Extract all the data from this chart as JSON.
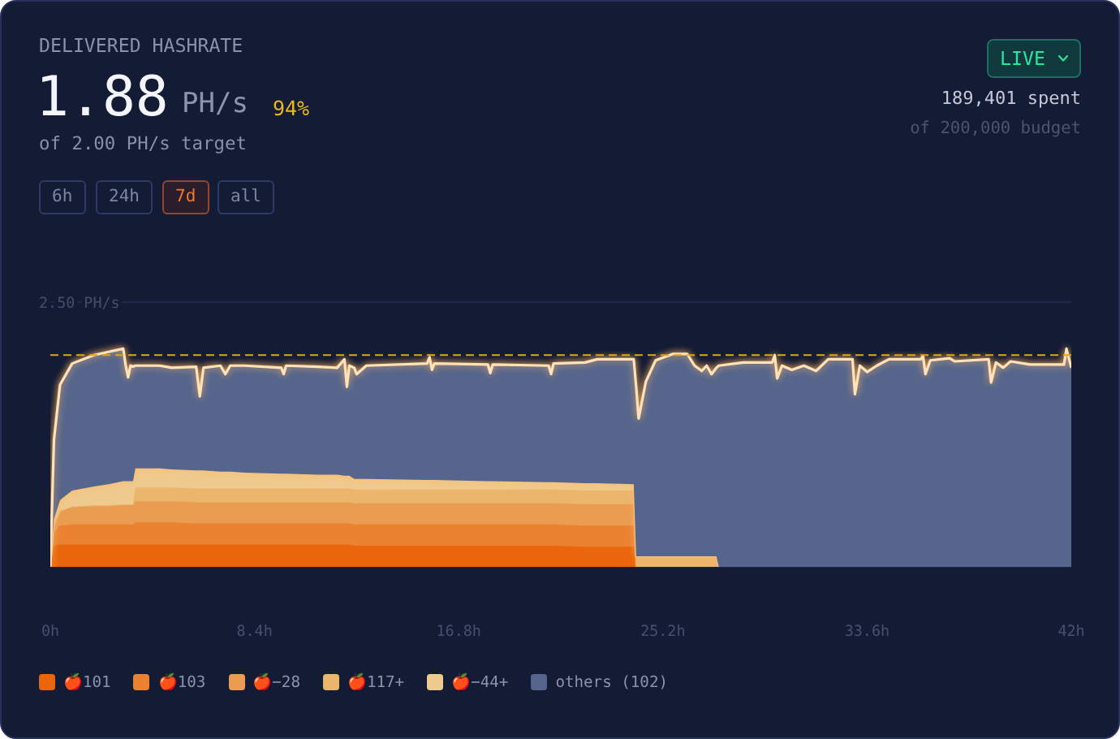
{
  "chart_data": {
    "type": "area",
    "title": "DELIVERED HASHRATE",
    "x": [
      0,
      0.15,
      0.4,
      0.9,
      1.8,
      2.4,
      3.0,
      3.1,
      3.2,
      3.3,
      3.4,
      3.5,
      4.5,
      5.0,
      6.0,
      6.15,
      6.3,
      7.0,
      7.2,
      7.4,
      8.0,
      9.5,
      9.6,
      9.7,
      11,
      11.8,
      12.1,
      12.2,
      12.3,
      12.5,
      12.6,
      13,
      15.5,
      15.6,
      15.7,
      15.8,
      18,
      18.1,
      18.2,
      20.5,
      20.6,
      20.7,
      22,
      22.5,
      24.0,
      24.1,
      24.2,
      24.5,
      24.9,
      25.6,
      26.2,
      26.5,
      26.8,
      27.0,
      27.2,
      27.4,
      27.5,
      28.5,
      29.7,
      29.8,
      29.9,
      30.1,
      30.5,
      31.0,
      31.5,
      32.0,
      33.0,
      33.1,
      33.3,
      33.6,
      34.0,
      34.5,
      35.8,
      35.9,
      36.0,
      36.2,
      37.0,
      37.2,
      38.6,
      38.7,
      38.9,
      39.2,
      39.5,
      40.3,
      41.7,
      41.8,
      42
    ],
    "xlim": [
      0,
      42
    ],
    "xticks": [
      {
        "value": 0,
        "label": "0h"
      },
      {
        "value": 8.4,
        "label": "8.4h"
      },
      {
        "value": 16.8,
        "label": "16.8h"
      },
      {
        "value": 25.2,
        "label": "25.2h"
      },
      {
        "value": 33.6,
        "label": "33.6h"
      },
      {
        "value": 42,
        "label": "42h"
      }
    ],
    "ylim": [
      0,
      2.5
    ],
    "yticks": [
      {
        "value": 2.5,
        "label": "2.50 PH/s"
      }
    ],
    "stacked": true,
    "grid": "y",
    "legend": "bottom left",
    "series": [
      {
        "name": "🍎101",
        "color": "#ea660c",
        "values": [
          0,
          0.2,
          0.21,
          0.21,
          0.21,
          0.21,
          0.21,
          0.21,
          0.21,
          0.21,
          0.21,
          0.21,
          0.21,
          0.21,
          0.21,
          0.21,
          0.21,
          0.21,
          0.21,
          0.21,
          0.21,
          0.21,
          0.21,
          0.21,
          0.21,
          0.21,
          0.21,
          0.21,
          0.21,
          0.2,
          0.2,
          0.2,
          0.2,
          0.2,
          0.2,
          0.2,
          0.2,
          0.2,
          0.2,
          0.2,
          0.2,
          0.2,
          0.19,
          0.19,
          0.19,
          0,
          0,
          0,
          0,
          0,
          0,
          0,
          0,
          0,
          0,
          0,
          0,
          0,
          0,
          0,
          0,
          0,
          0,
          0,
          0,
          0,
          0,
          0,
          0,
          0,
          0,
          0,
          0,
          0,
          0,
          0,
          0,
          0,
          0,
          0,
          0,
          0,
          0,
          0,
          0,
          0,
          0
        ]
      },
      {
        "name": "🍎103",
        "color": "#ea8232",
        "values": [
          0,
          0.13,
          0.18,
          0.19,
          0.19,
          0.19,
          0.19,
          0.19,
          0.19,
          0.19,
          0.19,
          0.21,
          0.21,
          0.21,
          0.2,
          0.2,
          0.2,
          0.2,
          0.2,
          0.2,
          0.2,
          0.2,
          0.2,
          0.2,
          0.2,
          0.2,
          0.2,
          0.2,
          0.2,
          0.2,
          0.2,
          0.2,
          0.2,
          0.2,
          0.2,
          0.2,
          0.2,
          0.2,
          0.2,
          0.2,
          0.2,
          0.2,
          0.2,
          0.2,
          0.2,
          0,
          0,
          0,
          0,
          0,
          0,
          0,
          0,
          0,
          0,
          0,
          0,
          0,
          0,
          0,
          0,
          0,
          0,
          0,
          0,
          0,
          0,
          0,
          0,
          0,
          0,
          0,
          0,
          0,
          0,
          0,
          0,
          0,
          0,
          0,
          0,
          0,
          0,
          0,
          0,
          0,
          0
        ]
      },
      {
        "name": "🍎−28",
        "color": "#ea9c50",
        "values": [
          0,
          0.07,
          0.14,
          0.17,
          0.18,
          0.18,
          0.19,
          0.19,
          0.19,
          0.19,
          0.19,
          0.2,
          0.2,
          0.2,
          0.2,
          0.2,
          0.2,
          0.2,
          0.2,
          0.2,
          0.2,
          0.2,
          0.2,
          0.2,
          0.2,
          0.2,
          0.2,
          0.2,
          0.2,
          0.2,
          0.2,
          0.2,
          0.2,
          0.2,
          0.2,
          0.2,
          0.2,
          0.2,
          0.2,
          0.2,
          0.2,
          0.2,
          0.2,
          0.2,
          0.2,
          0,
          0,
          0,
          0,
          0,
          0,
          0,
          0,
          0,
          0,
          0,
          0,
          0,
          0,
          0,
          0,
          0,
          0,
          0,
          0,
          0,
          0,
          0,
          0,
          0,
          0,
          0,
          0,
          0,
          0,
          0,
          0,
          0,
          0,
          0,
          0,
          0,
          0,
          0,
          0,
          0,
          0
        ]
      },
      {
        "name": "🍎117+",
        "color": "#ecb56c",
        "values": [
          0,
          0,
          0,
          0,
          0,
          0,
          0,
          0,
          0,
          0,
          0,
          0.13,
          0.13,
          0.13,
          0.13,
          0.13,
          0.13,
          0.13,
          0.13,
          0.13,
          0.13,
          0.13,
          0.13,
          0.13,
          0.13,
          0.13,
          0.13,
          0.13,
          0.13,
          0.13,
          0.13,
          0.13,
          0.13,
          0.13,
          0.13,
          0.13,
          0.13,
          0.13,
          0.13,
          0.13,
          0.13,
          0.13,
          0.13,
          0.13,
          0.13,
          0.1,
          0.1,
          0.1,
          0.1,
          0.1,
          0.1,
          0.1,
          0.1,
          0.1,
          0.1,
          0.1,
          0,
          0,
          0,
          0,
          0,
          0,
          0,
          0,
          0,
          0,
          0,
          0,
          0,
          0,
          0,
          0,
          0,
          0,
          0,
          0,
          0,
          0,
          0,
          0,
          0,
          0,
          0,
          0,
          0,
          0,
          0
        ]
      },
      {
        "name": "🍎−44+",
        "color": "#efca8e",
        "values": [
          0,
          0.05,
          0.1,
          0.15,
          0.18,
          0.2,
          0.22,
          0.22,
          0.22,
          0.22,
          0.22,
          0.18,
          0.18,
          0.17,
          0.17,
          0.17,
          0.17,
          0.16,
          0.16,
          0.16,
          0.15,
          0.14,
          0.14,
          0.14,
          0.13,
          0.13,
          0.12,
          0.12,
          0.12,
          0.1,
          0.1,
          0.1,
          0.09,
          0.09,
          0.09,
          0.09,
          0.08,
          0.08,
          0.08,
          0.07,
          0.07,
          0.07,
          0.07,
          0.07,
          0.06,
          0,
          0,
          0,
          0,
          0,
          0,
          0,
          0,
          0,
          0,
          0,
          0,
          0,
          0,
          0,
          0,
          0,
          0,
          0,
          0,
          0,
          0,
          0,
          0,
          0,
          0,
          0,
          0,
          0,
          0,
          0,
          0,
          0,
          0,
          0,
          0,
          0,
          0,
          0,
          0,
          0,
          0
        ]
      },
      {
        "name": "others (102)",
        "color": "#56658c",
        "values": [
          0,
          0.75,
          1.09,
          1.2,
          1.24,
          1.25,
          1.25,
          1.09,
          0.98,
          1.09,
          1.08,
          0.97,
          0.97,
          0.96,
          0.98,
          0.7,
          0.97,
          1.0,
          0.92,
          1.0,
          1.01,
          1.0,
          0.94,
          1.02,
          1.02,
          1.01,
          1.1,
          0.84,
          1.04,
          1.05,
          0.99,
          1.07,
          1.1,
          1.16,
          1.04,
          1.1,
          1.1,
          1.02,
          1.1,
          1.1,
          1.02,
          1.12,
          1.14,
          1.17,
          1.18,
          1.6,
          1.3,
          1.65,
          1.85,
          1.91,
          1.91,
          1.8,
          1.75,
          1.8,
          1.72,
          1.78,
          1.9,
          1.93,
          1.93,
          2.0,
          1.78,
          1.9,
          1.86,
          1.9,
          1.85,
          1.96,
          1.96,
          1.63,
          1.9,
          1.84,
          1.9,
          1.96,
          1.96,
          1.99,
          1.82,
          1.95,
          1.97,
          1.94,
          1.96,
          1.74,
          1.93,
          1.88,
          1.94,
          1.91,
          1.91,
          2.06,
          1.88
        ]
      }
    ],
    "ref_lines": [
      {
        "axis": "y",
        "value": 2.0,
        "color": "#e0a51c",
        "line_style": "dashed"
      }
    ],
    "annotations": [
      "1.88",
      "PH/s",
      "94%",
      "of 2.00 PH/s target",
      "6h",
      "24h",
      "7d",
      "all",
      "LIVE",
      "189,401 spent",
      "of 200,000 budget"
    ]
  }
}
